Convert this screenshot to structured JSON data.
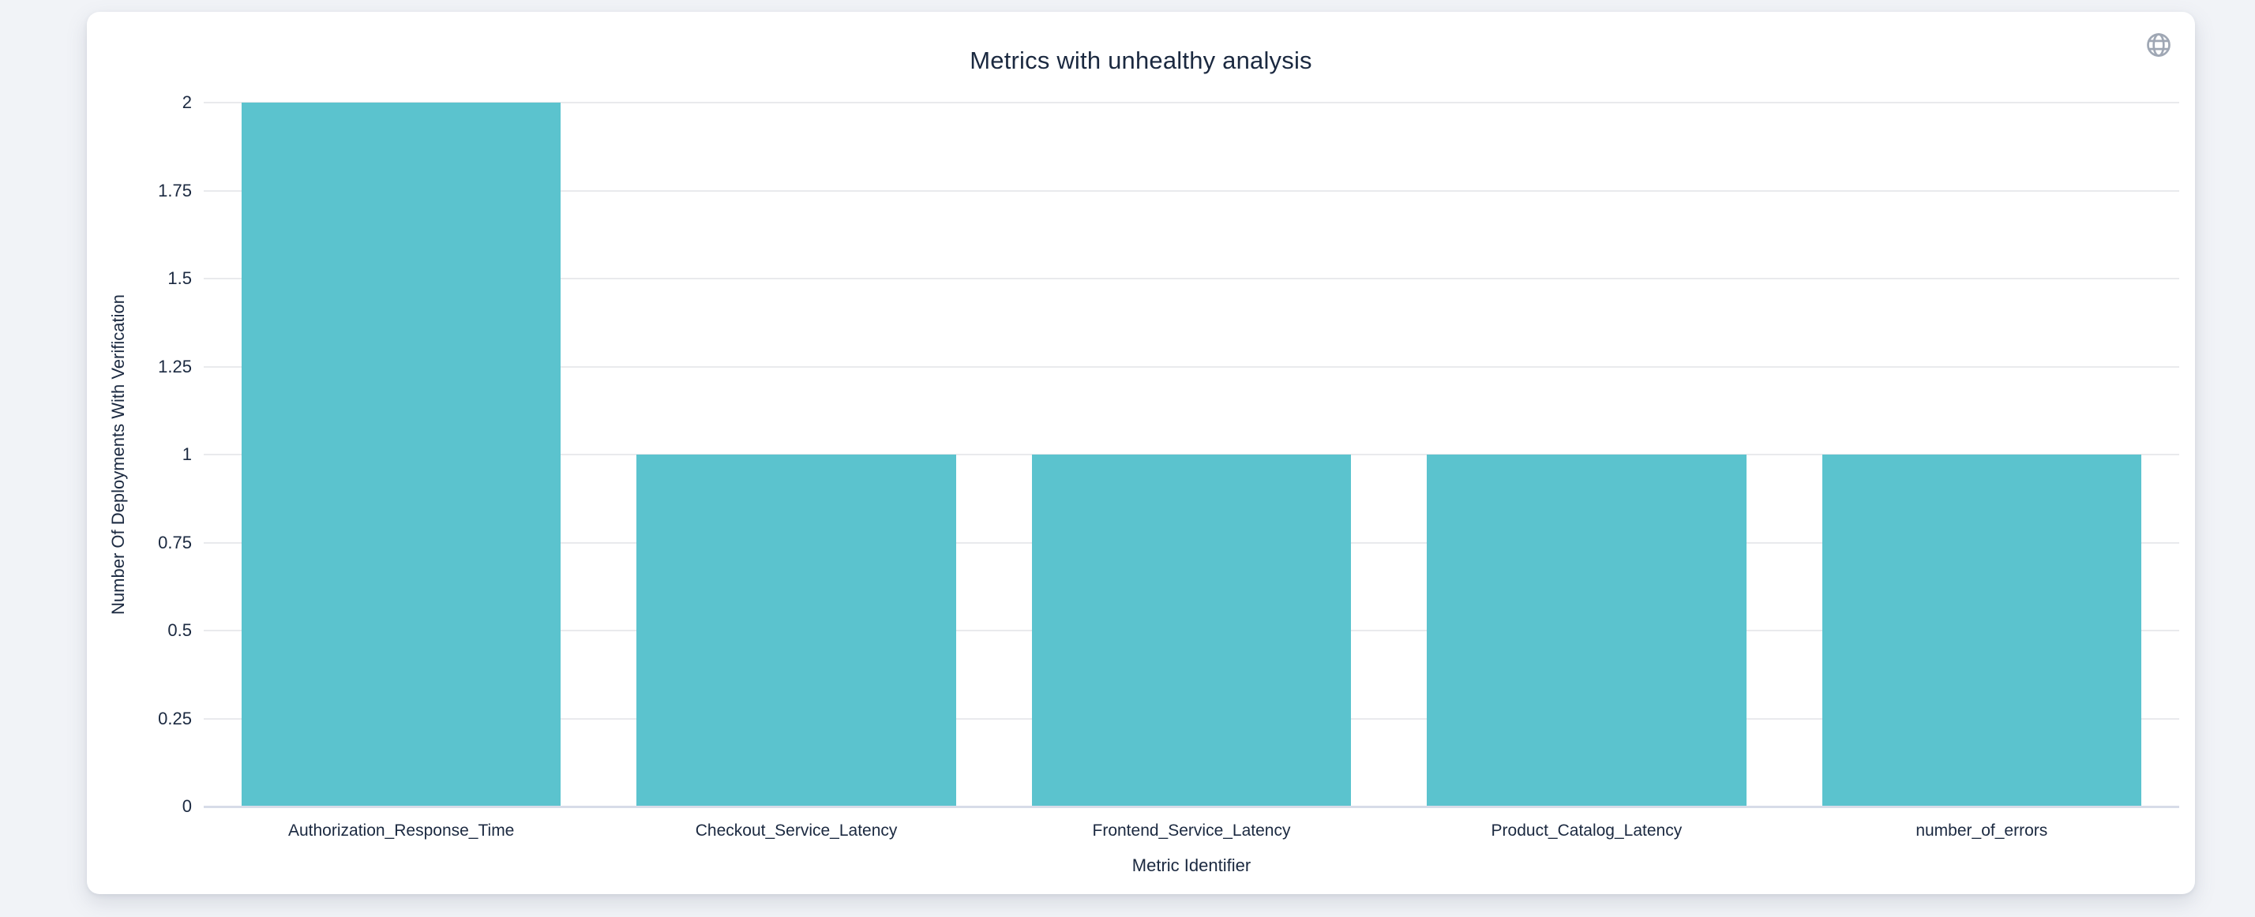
{
  "chart_data": {
    "type": "bar",
    "title": "Metrics with unhealthy analysis",
    "categories": [
      "Authorization_Response_Time",
      "Checkout_Service_Latency",
      "Frontend_Service_Latency",
      "Product_Catalog_Latency",
      "number_of_errors"
    ],
    "values": [
      2,
      1,
      1,
      1,
      1
    ],
    "xlabel": "Metric Identifier",
    "ylabel": "Number Of Deployments With Verification",
    "ylim": [
      0,
      2
    ],
    "yticks": [
      0,
      0.25,
      0.5,
      0.75,
      1,
      1.25,
      1.5,
      1.75,
      2
    ],
    "ytick_labels": [
      "0",
      "0.25",
      "0.5",
      "0.75",
      "1",
      "1.25",
      "1.5",
      "1.75",
      "2"
    ],
    "grid": true,
    "legend": "none",
    "bar_gap_fraction": 0.096
  },
  "icons": {
    "globe": "globe-icon"
  },
  "colors": {
    "bar": "#5bc3ce",
    "grid_line": "#e9eaed",
    "zero_line": "#d7dce8",
    "text": "#1b2940",
    "icon": "#9aa3b0",
    "page_background": "#f1f3f7",
    "card_background": "#ffffff"
  }
}
